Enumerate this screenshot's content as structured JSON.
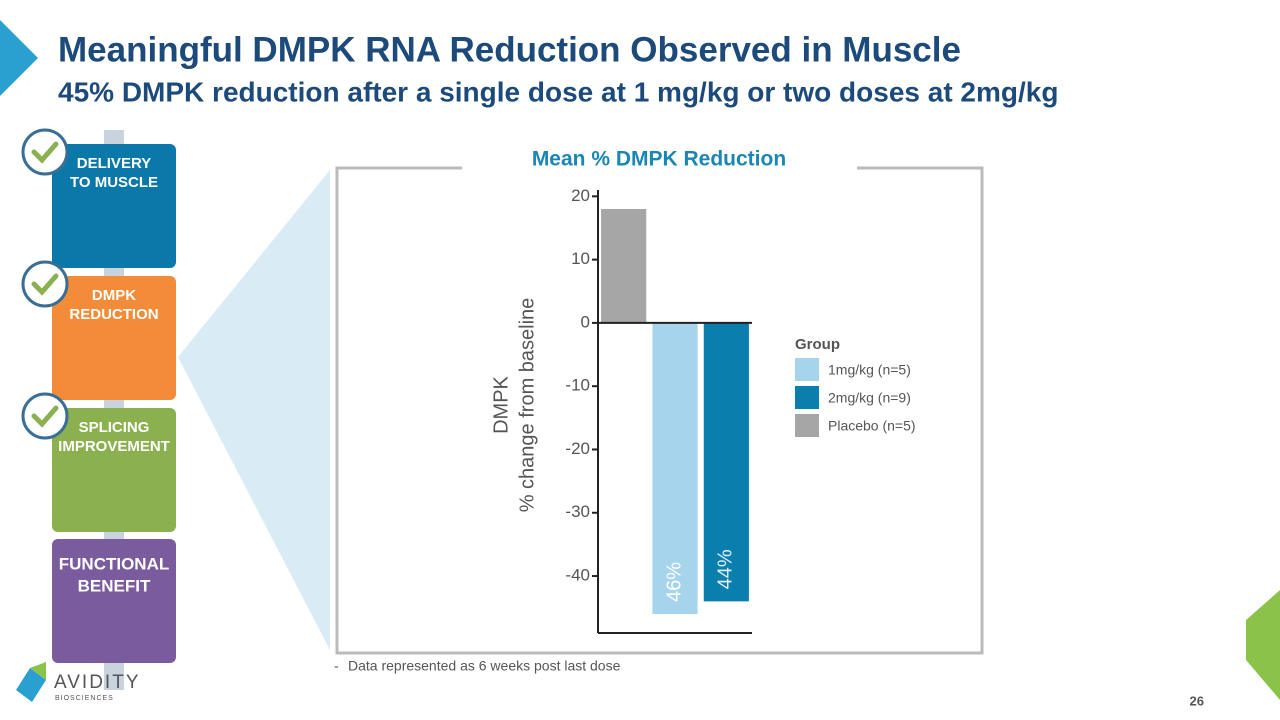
{
  "title": "Meaningful DMPK RNA Reduction Observed in Muscle",
  "subtitle": "45% DMPK reduction after a single dose at 1 mg/kg or two doses at 2mg/kg",
  "steps": [
    {
      "lines": [
        "DELIVERY",
        "TO MUSCLE"
      ]
    },
    {
      "lines": [
        "DMPK",
        "REDUCTION"
      ]
    },
    {
      "lines": [
        "SPLICING",
        "IMPROVEMENT"
      ]
    },
    {
      "lines": [
        "FUNCTIONAL",
        "BENEFIT"
      ]
    }
  ],
  "footnote": "Data represented as 6 weeks post last dose",
  "page_number": "26",
  "logo": {
    "name": "AVIDITY",
    "tagline": "BIOSCIENCES"
  },
  "chart_data": {
    "type": "bar",
    "title": "Mean % DMPK Reduction",
    "ylabel": [
      "DMPK",
      "% change from baseline"
    ],
    "categories": [
      null,
      null,
      null
    ],
    "series": [
      {
        "name": "1mg/kg (n=5)",
        "color": "#a6d4ec",
        "values": [
          null,
          -46,
          null
        ],
        "value_labels": [
          null,
          "46%",
          null
        ]
      },
      {
        "name": "2mg/kg (n=9)",
        "color": "#0a7fad",
        "values": [
          null,
          null,
          -44
        ],
        "value_labels": [
          null,
          null,
          "44%"
        ]
      },
      {
        "name": "Placebo (n=5)",
        "color": "#a6a6a6",
        "values": [
          18,
          null,
          null
        ]
      }
    ],
    "legend_title": "Group",
    "legend": "right",
    "ylim": [
      -49,
      21
    ],
    "yticks": [
      20,
      10,
      0,
      -10,
      -20,
      -30,
      -40
    ],
    "grid": false
  }
}
